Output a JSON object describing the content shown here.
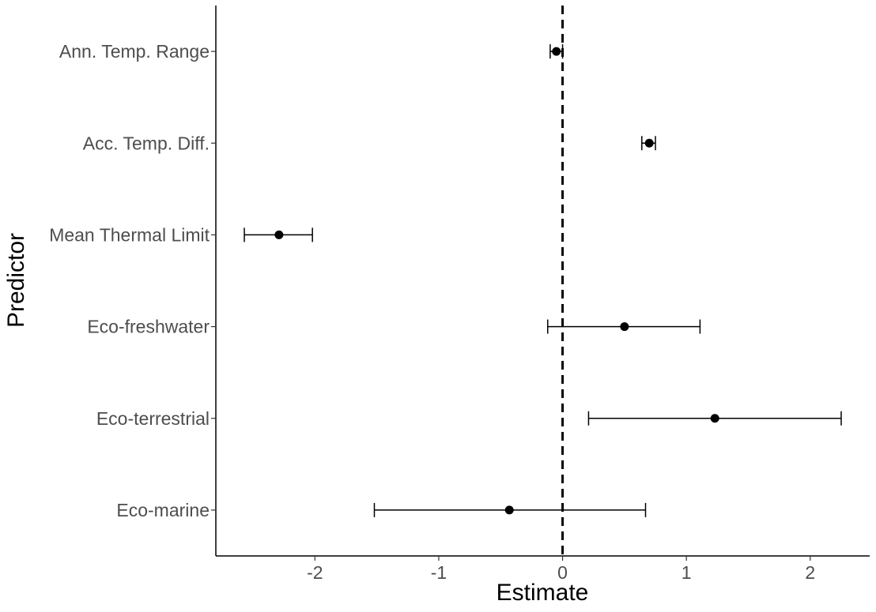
{
  "chart_data": {
    "type": "scatter",
    "subtype": "point-range",
    "title": "",
    "xlabel": "Estimate",
    "ylabel": "Predictor",
    "xlim": [
      -2.8,
      2.48
    ],
    "xticks": [
      -2,
      -1,
      0,
      1,
      2
    ],
    "xtick_labels": [
      "-2",
      "-1",
      "0",
      "1",
      "2"
    ],
    "reference_line": {
      "x": 0,
      "style": "dashed"
    },
    "grid": false,
    "legend": "none",
    "colors": {
      "points": "#000000",
      "axis": "#000000",
      "tick_text": "#4d4d4d"
    },
    "series": [
      {
        "points": [
          {
            "predictor": "Ann. Temp. Range",
            "estimate": -0.05,
            "lower": -0.1,
            "upper": 0.0
          },
          {
            "predictor": "Acc. Temp. Diff.",
            "estimate": 0.7,
            "lower": 0.64,
            "upper": 0.75
          },
          {
            "predictor": "Mean Thermal Limit",
            "estimate": -2.29,
            "lower": -2.57,
            "upper": -2.02
          },
          {
            "predictor": "Eco-freshwater",
            "estimate": 0.5,
            "lower": -0.12,
            "upper": 1.11
          },
          {
            "predictor": "Eco-terrestrial",
            "estimate": 1.23,
            "lower": 0.21,
            "upper": 2.25
          },
          {
            "predictor": "Eco-marine",
            "estimate": -0.43,
            "lower": -1.52,
            "upper": 0.67
          }
        ]
      }
    ]
  }
}
